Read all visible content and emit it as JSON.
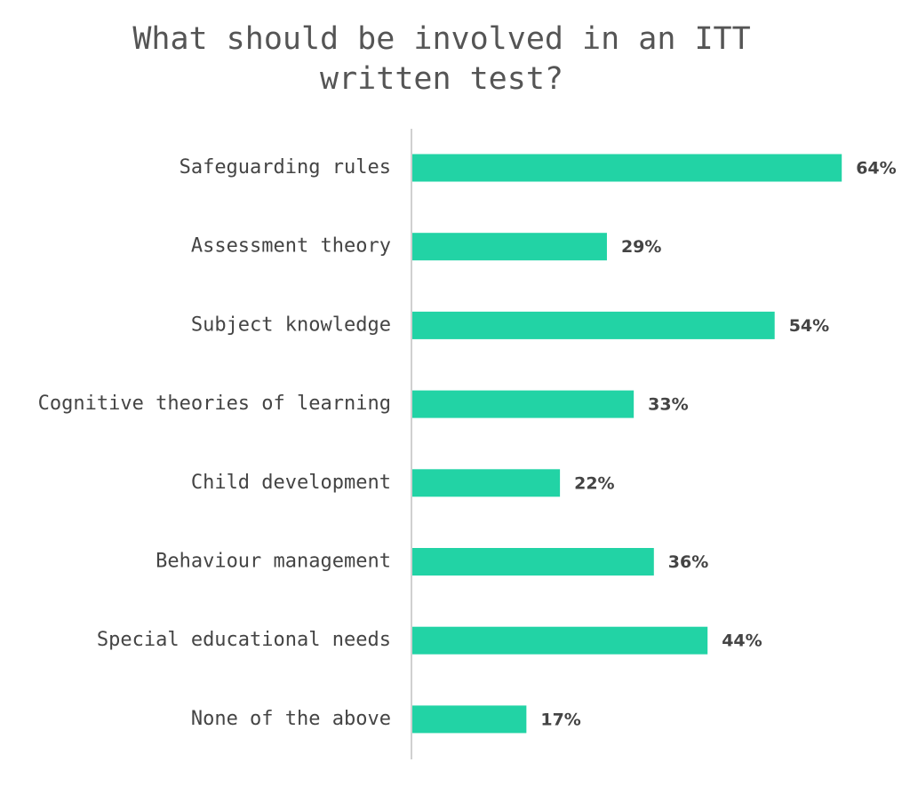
{
  "chart_data": {
    "type": "bar",
    "orientation": "horizontal",
    "title": "What should be involved in an ITT written test?",
    "categories": [
      "Safeguarding rules",
      "Assessment theory",
      "Subject knowledge",
      "Cognitive theories of learning",
      "Child development",
      "Behaviour management",
      "Special educational needs",
      "None of the above"
    ],
    "values": [
      64,
      29,
      54,
      33,
      22,
      36,
      44,
      17
    ],
    "value_labels": [
      "64%",
      "29%",
      "54%",
      "33%",
      "22%",
      "36%",
      "44%",
      "17%"
    ],
    "color": "#22d3a5"
  }
}
